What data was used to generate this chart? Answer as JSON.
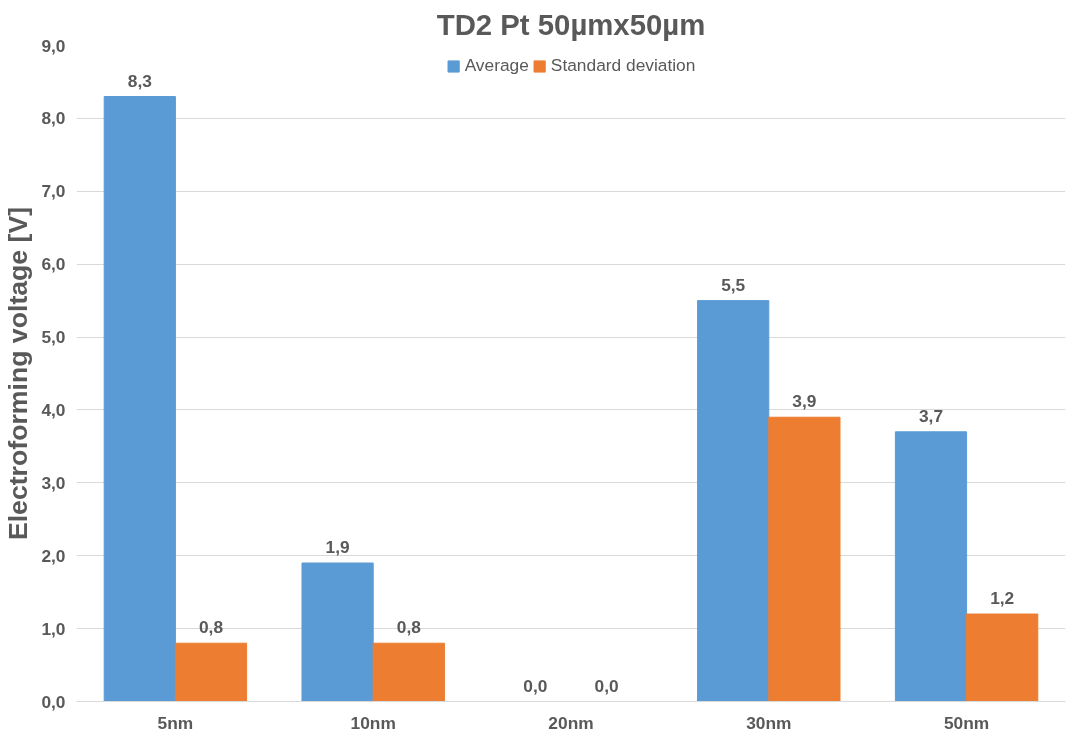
{
  "chart_data": {
    "type": "bar",
    "title": "TD2 Pt 50µmx50µm",
    "ylabel": "Electroforming voltage [V]",
    "categories": [
      "5nm",
      "10nm",
      "20nm",
      "30nm",
      "50nm"
    ],
    "series": [
      {
        "name": "Average",
        "color": "#5b9bd5",
        "values": [
          8.3,
          1.9,
          0.0,
          5.5,
          3.7
        ],
        "value_labels": [
          "8,3",
          "1,9",
          "0,0",
          "5,5",
          "3,7"
        ]
      },
      {
        "name": "Standard deviation",
        "color": "#ed7d31",
        "values": [
          0.8,
          0.8,
          0.0,
          3.9,
          1.2
        ],
        "value_labels": [
          "0,8",
          "0,8",
          "0,0",
          "3,9",
          "1,2"
        ]
      }
    ],
    "ylim": [
      0,
      9
    ],
    "yticks": [
      {
        "value": 0,
        "label": "0,0"
      },
      {
        "value": 1,
        "label": "1,0"
      },
      {
        "value": 2,
        "label": "2,0"
      },
      {
        "value": 3,
        "label": "3,0"
      },
      {
        "value": 4,
        "label": "4,0"
      },
      {
        "value": 5,
        "label": "5,0"
      },
      {
        "value": 6,
        "label": "6,0"
      },
      {
        "value": 7,
        "label": "7,0"
      },
      {
        "value": 8,
        "label": "8,0"
      },
      {
        "value": 9,
        "label": "9,0"
      }
    ],
    "grid": "y",
    "legend": "top"
  }
}
